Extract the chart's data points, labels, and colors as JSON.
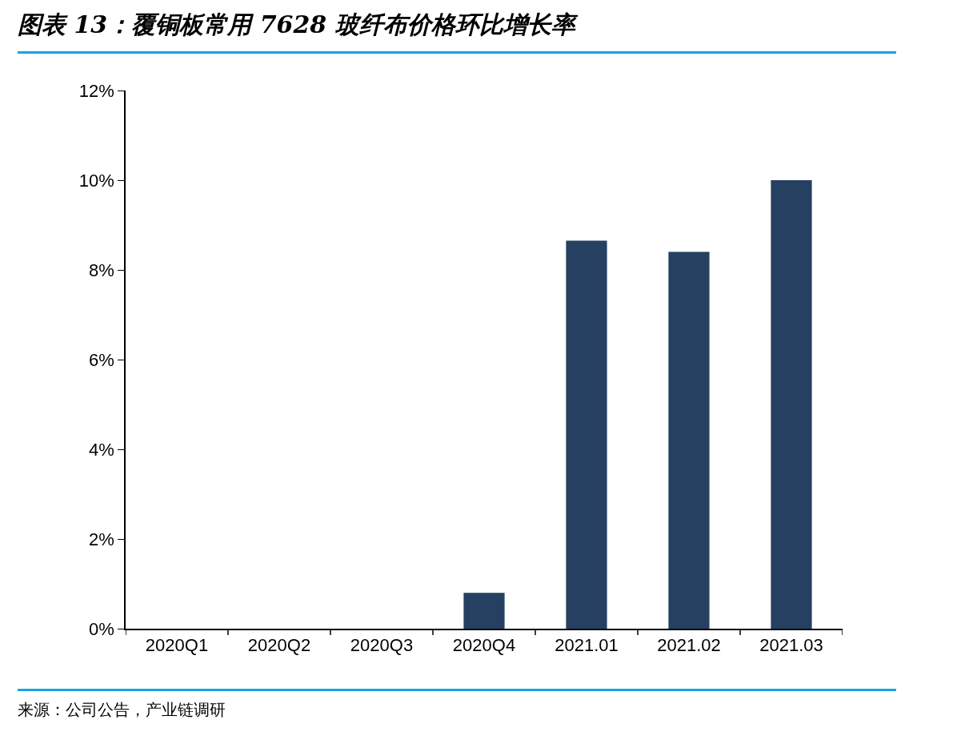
{
  "chart_data": {
    "type": "bar",
    "title": "图表 13：覆铜板常用 7628 玻纤布价格环比增长率",
    "categories": [
      "2020Q1",
      "2020Q2",
      "2020Q3",
      "2020Q4",
      "2021.01",
      "2021.02",
      "2021.03"
    ],
    "values": [
      0,
      0,
      0,
      0.8,
      8.65,
      8.4,
      10
    ],
    "color": "#264061",
    "ylim": [
      0,
      12
    ],
    "yticks": [
      {
        "value": 0,
        "label": "0%"
      },
      {
        "value": 2,
        "label": "2%"
      },
      {
        "value": 4,
        "label": "4%"
      },
      {
        "value": 6,
        "label": "6%"
      },
      {
        "value": 8,
        "label": "8%"
      },
      {
        "value": 10,
        "label": "10%"
      },
      {
        "value": 12,
        "label": "12%"
      }
    ],
    "grid": false,
    "annotations": [
      "来源：公司公告，产业链调研"
    ]
  }
}
